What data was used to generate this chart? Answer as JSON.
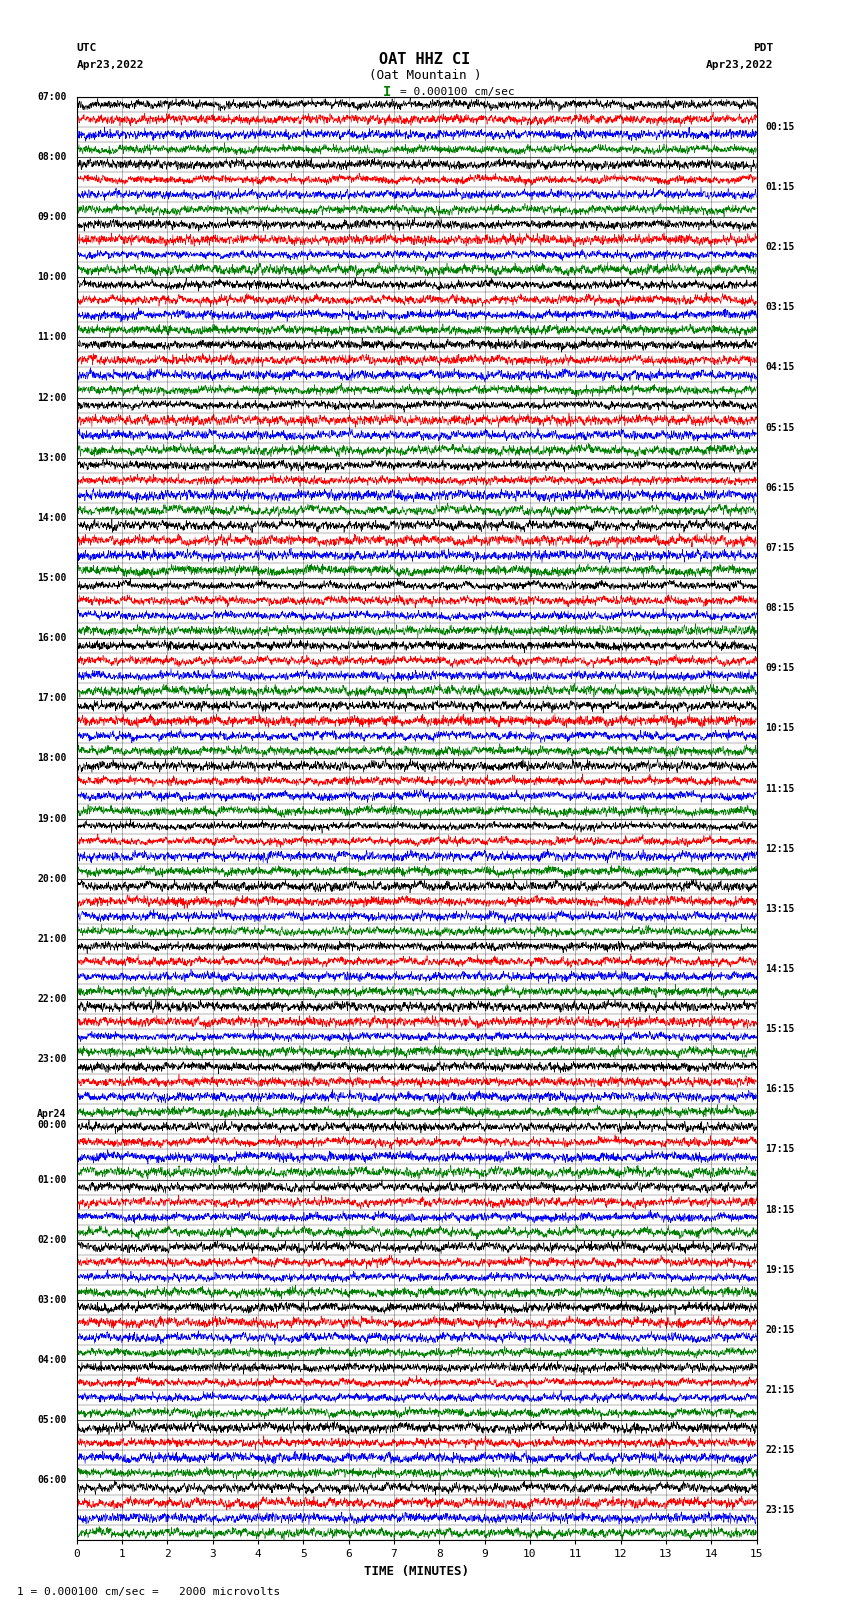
{
  "title_line1": "OAT HHZ CI",
  "title_line2": "(Oat Mountain )",
  "scale_label": "I = 0.000100 cm/sec",
  "utc_label": "UTC",
  "utc_date": "Apr23,2022",
  "pdt_label": "PDT",
  "pdt_date": "Apr23,2022",
  "xlabel": "TIME (MINUTES)",
  "bottom_note": "1 = 0.000100 cm/sec =   2000 microvolts",
  "left_times": [
    "07:00",
    "08:00",
    "09:00",
    "10:00",
    "11:00",
    "12:00",
    "13:00",
    "14:00",
    "15:00",
    "16:00",
    "17:00",
    "18:00",
    "19:00",
    "20:00",
    "21:00",
    "22:00",
    "23:00",
    "Apr24\n00:00",
    "01:00",
    "02:00",
    "03:00",
    "04:00",
    "05:00",
    "06:00"
  ],
  "right_times": [
    "00:15",
    "01:15",
    "02:15",
    "03:15",
    "04:15",
    "05:15",
    "06:15",
    "07:15",
    "08:15",
    "09:15",
    "10:15",
    "11:15",
    "12:15",
    "13:15",
    "14:15",
    "15:15",
    "16:15",
    "17:15",
    "18:15",
    "19:15",
    "20:15",
    "21:15",
    "22:15",
    "23:15"
  ],
  "n_major_rows": 24,
  "n_sub_rows": 4,
  "n_cols": 3000,
  "minutes_per_row": 15,
  "x_ticks": [
    0,
    1,
    2,
    3,
    4,
    5,
    6,
    7,
    8,
    9,
    10,
    11,
    12,
    13,
    14,
    15
  ],
  "colors": [
    "black",
    "red",
    "blue",
    "green"
  ],
  "bg_color": "white",
  "figsize": [
    8.5,
    16.13
  ],
  "dpi": 100
}
